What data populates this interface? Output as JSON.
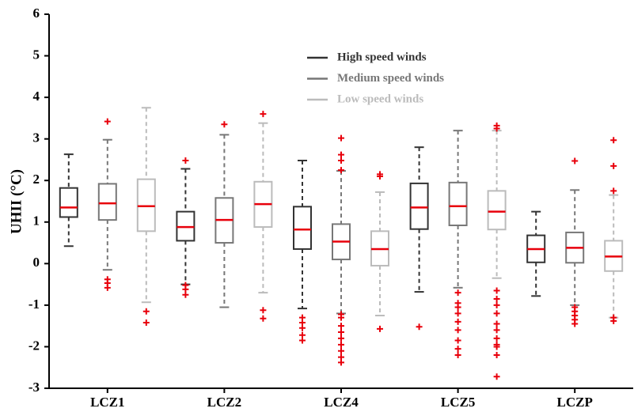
{
  "chart_data": {
    "type": "box",
    "y_label": "UHII (°C)",
    "categories": [
      "LCZ1",
      "LCZ2",
      "LCZ4",
      "LCZ5",
      "LCZP"
    ],
    "ylim": [
      -3,
      6
    ],
    "yticks": [
      -3,
      -2,
      -1,
      0,
      1,
      2,
      3,
      4,
      5,
      6
    ],
    "median_color": "#e8000b",
    "outlier_color": "#e8000b",
    "series": [
      {
        "name": "High speed winds",
        "color": "#333333",
        "boxes": [
          {
            "low": 0.42,
            "q1": 1.12,
            "median": 1.35,
            "q3": 1.82,
            "high": 2.63,
            "outliers": []
          },
          {
            "low": -0.5,
            "q1": 0.55,
            "median": 0.88,
            "q3": 1.25,
            "high": 2.28,
            "outliers": [
              2.48,
              -0.52,
              -0.62,
              -0.75
            ]
          },
          {
            "low": -1.08,
            "q1": 0.35,
            "median": 0.82,
            "q3": 1.37,
            "high": 2.48,
            "outliers": [
              -1.3,
              -1.42,
              -1.55,
              -1.72,
              -1.85
            ]
          },
          {
            "low": -0.68,
            "q1": 0.83,
            "median": 1.35,
            "q3": 1.93,
            "high": 2.8,
            "outliers": [
              -1.52
            ]
          },
          {
            "low": -0.78,
            "q1": 0.03,
            "median": 0.35,
            "q3": 0.68,
            "high": 1.25,
            "outliers": []
          }
        ]
      },
      {
        "name": "Medium speed winds",
        "color": "#777777",
        "boxes": [
          {
            "low": -0.15,
            "q1": 1.05,
            "median": 1.45,
            "q3": 1.92,
            "high": 2.98,
            "outliers": [
              3.42,
              -0.38,
              -0.47,
              -0.58
            ]
          },
          {
            "low": -1.05,
            "q1": 0.5,
            "median": 1.05,
            "q3": 1.58,
            "high": 3.1,
            "outliers": [
              3.35
            ]
          },
          {
            "low": -1.2,
            "q1": 0.1,
            "median": 0.53,
            "q3": 0.95,
            "high": 2.23,
            "outliers": [
              3.02,
              2.62,
              2.48,
              2.25,
              -1.22,
              -1.3,
              -1.5,
              -1.65,
              -1.8,
              -1.95,
              -2.1,
              -2.25,
              -2.38
            ]
          },
          {
            "low": -0.58,
            "q1": 0.92,
            "median": 1.38,
            "q3": 1.95,
            "high": 3.2,
            "outliers": [
              -0.7,
              -0.95,
              -1.05,
              -1.2,
              -1.4,
              -1.6,
              -1.85,
              -2.05,
              -2.2
            ]
          },
          {
            "low": -1.0,
            "q1": 0.02,
            "median": 0.38,
            "q3": 0.75,
            "high": 1.77,
            "outliers": [
              2.47,
              -1.05,
              -1.15,
              -1.25,
              -1.35,
              -1.45
            ]
          }
        ]
      },
      {
        "name": "Low speed winds",
        "color": "#bbbbbb",
        "boxes": [
          {
            "low": -0.93,
            "q1": 0.78,
            "median": 1.38,
            "q3": 2.03,
            "high": 3.75,
            "outliers": [
              -1.15,
              -1.42
            ]
          },
          {
            "low": -0.7,
            "q1": 0.88,
            "median": 1.43,
            "q3": 1.97,
            "high": 3.38,
            "outliers": [
              3.6,
              -1.12,
              -1.32
            ]
          },
          {
            "low": -1.25,
            "q1": -0.05,
            "median": 0.35,
            "q3": 0.78,
            "high": 1.72,
            "outliers": [
              2.15,
              2.1,
              -1.57
            ]
          },
          {
            "low": -0.35,
            "q1": 0.82,
            "median": 1.25,
            "q3": 1.75,
            "high": 3.2,
            "outliers": [
              3.32,
              3.25,
              -0.65,
              -0.85,
              -1.0,
              -1.2,
              -1.45,
              -1.6,
              -1.8,
              -1.95,
              -2.0,
              -2.2,
              -2.72
            ]
          },
          {
            "low": -1.3,
            "q1": -0.18,
            "median": 0.17,
            "q3": 0.55,
            "high": 1.65,
            "outliers": [
              2.97,
              2.35,
              1.75,
              -1.3,
              -1.38
            ]
          }
        ]
      }
    ]
  }
}
